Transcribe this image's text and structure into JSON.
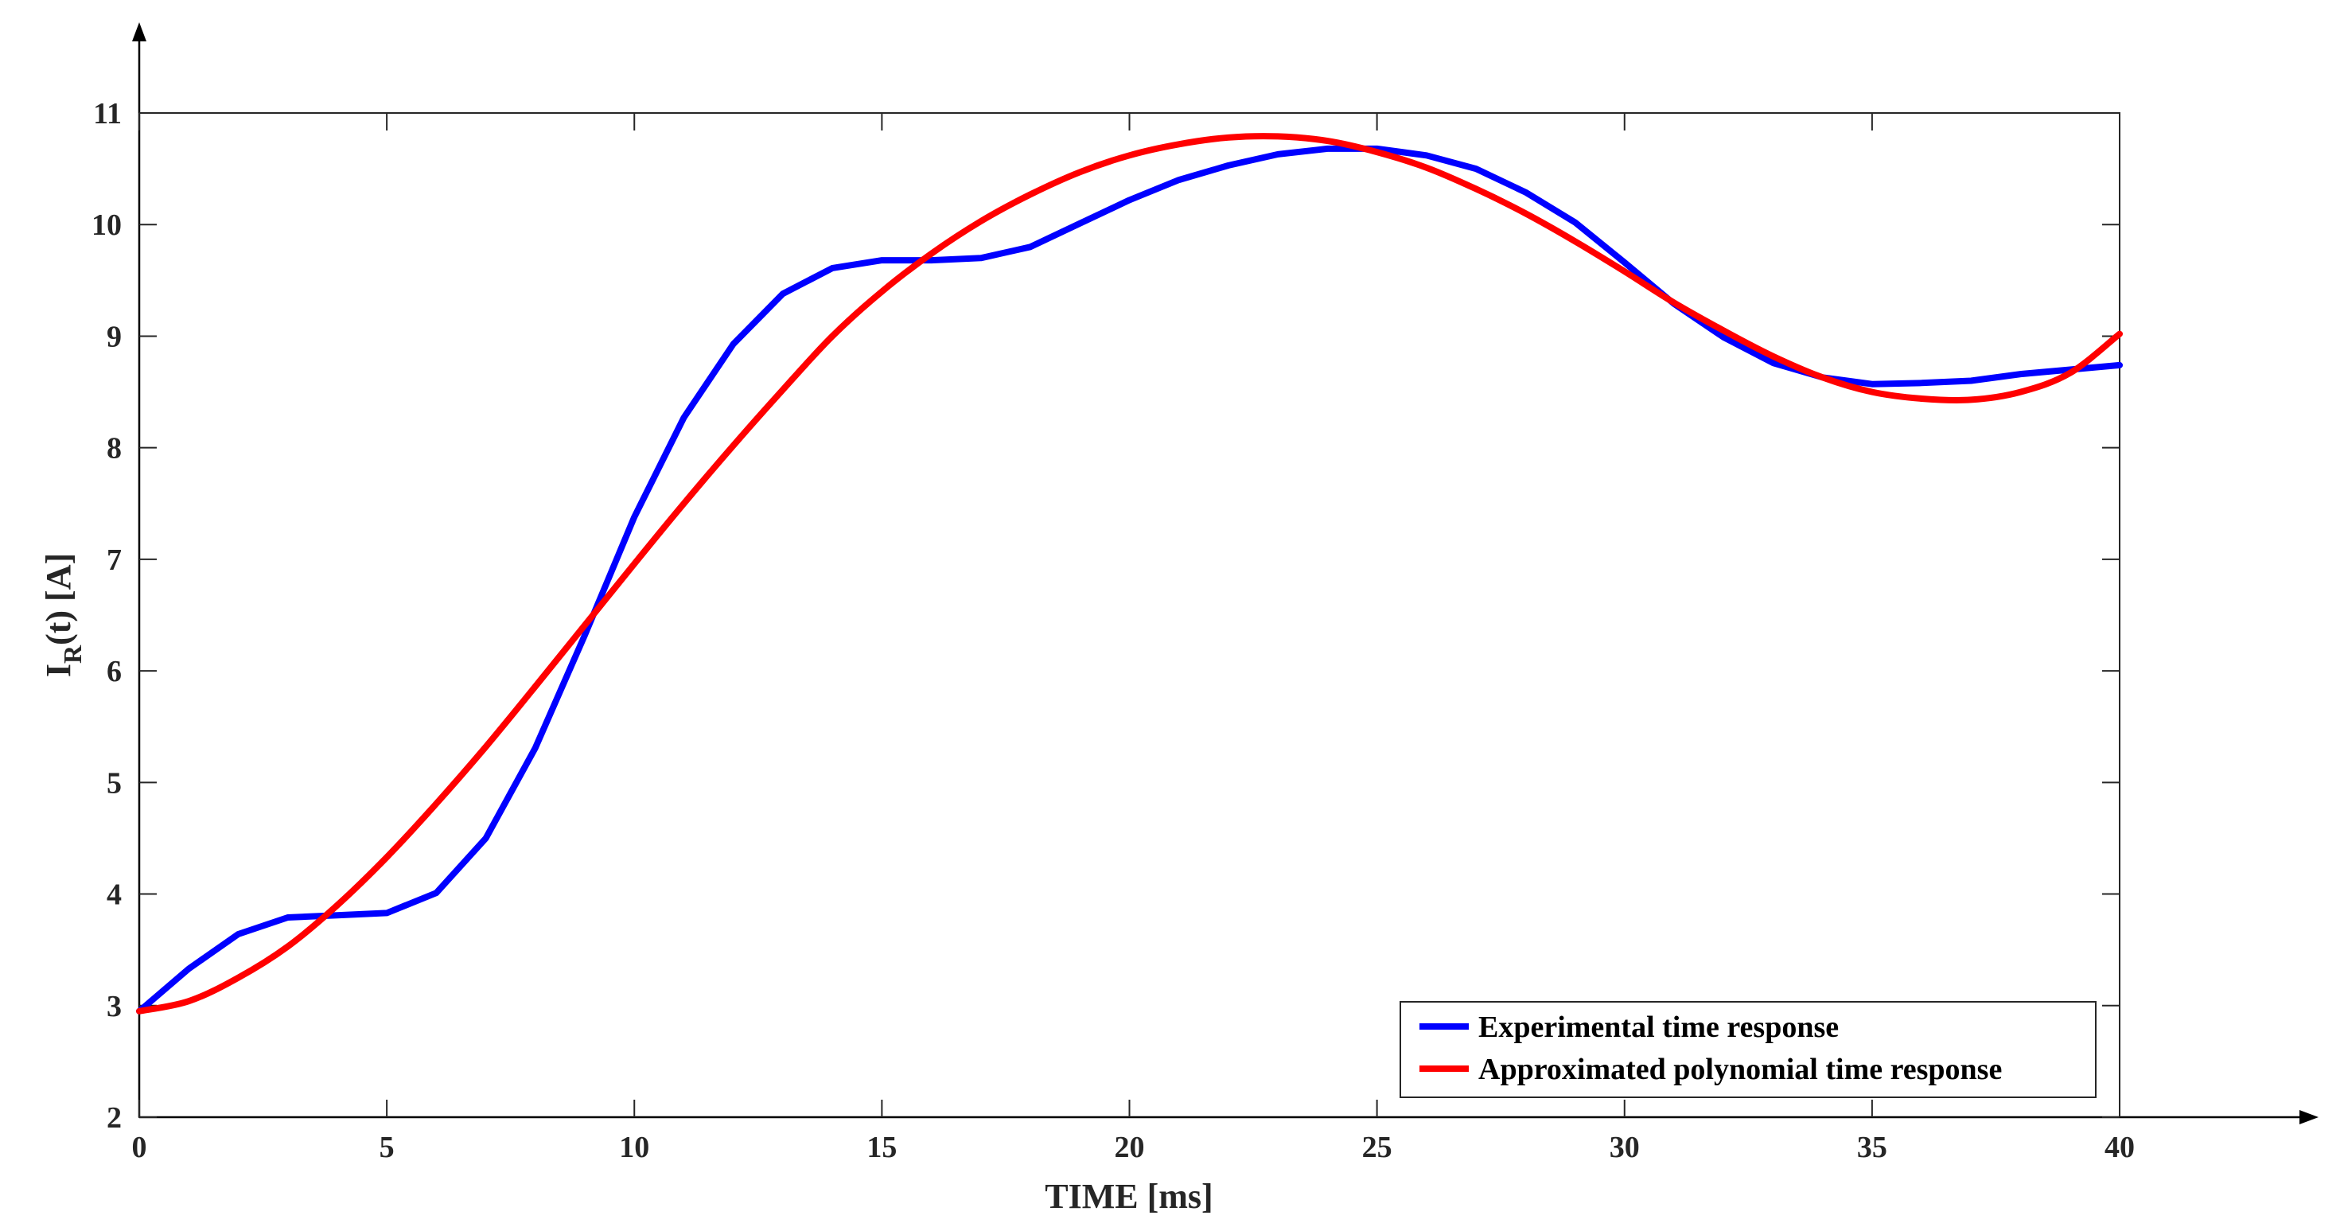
{
  "chart_data": {
    "type": "line",
    "title": "",
    "xlabel": "TIME [ms]",
    "ylabel_main": "I",
    "ylabel_sub": "R",
    "ylabel_rest": "(t) [A]",
    "xlim": [
      0,
      40
    ],
    "ylim": [
      2,
      11
    ],
    "xticks": [
      0,
      5,
      10,
      15,
      20,
      25,
      30,
      35,
      40
    ],
    "yticks": [
      2,
      3,
      4,
      5,
      6,
      7,
      8,
      9,
      10,
      11
    ],
    "grid": false,
    "legend_position": "bottom-right",
    "series": [
      {
        "name": "Experimental time response",
        "color": "#0000ff",
        "x": [
          0,
          1,
          2,
          3,
          4,
          5,
          6,
          7,
          8,
          9,
          10,
          11,
          12,
          13,
          14,
          15,
          16,
          17,
          18,
          19,
          20,
          21,
          22,
          23,
          24,
          25,
          26,
          27,
          28,
          29,
          30,
          31,
          32,
          33,
          34,
          35,
          36,
          37,
          38,
          39,
          40
        ],
        "y": [
          2.95,
          3.33,
          3.64,
          3.79,
          3.81,
          3.83,
          4.01,
          4.5,
          5.31,
          6.32,
          7.38,
          8.27,
          8.93,
          9.38,
          9.61,
          9.68,
          9.68,
          9.7,
          9.8,
          10.01,
          10.22,
          10.4,
          10.53,
          10.63,
          10.68,
          10.68,
          10.62,
          10.5,
          10.29,
          10.02,
          9.66,
          9.29,
          8.99,
          8.76,
          8.63,
          8.57,
          8.58,
          8.6,
          8.66,
          8.7,
          8.74
        ]
      },
      {
        "name": "Approximated polynomial time response",
        "color": "#ff0000",
        "x": [
          0,
          1,
          2,
          3,
          4,
          5,
          6,
          7,
          8,
          9,
          10,
          11,
          12,
          13,
          14,
          15,
          16,
          17,
          18,
          19,
          20,
          21,
          22,
          23,
          24,
          25,
          26,
          27,
          28,
          29,
          30,
          31,
          32,
          33,
          34,
          35,
          36,
          37,
          38,
          39,
          40
        ],
        "y": [
          2.95,
          3.04,
          3.25,
          3.53,
          3.9,
          4.33,
          4.81,
          5.32,
          5.86,
          6.41,
          6.96,
          7.5,
          8.02,
          8.52,
          9.0,
          9.4,
          9.74,
          10.03,
          10.27,
          10.47,
          10.62,
          10.72,
          10.78,
          10.79,
          10.75,
          10.65,
          10.51,
          10.32,
          10.1,
          9.85,
          9.58,
          9.3,
          9.05,
          8.82,
          8.63,
          8.5,
          8.44,
          8.43,
          8.5,
          8.67,
          9.02
        ]
      }
    ]
  }
}
